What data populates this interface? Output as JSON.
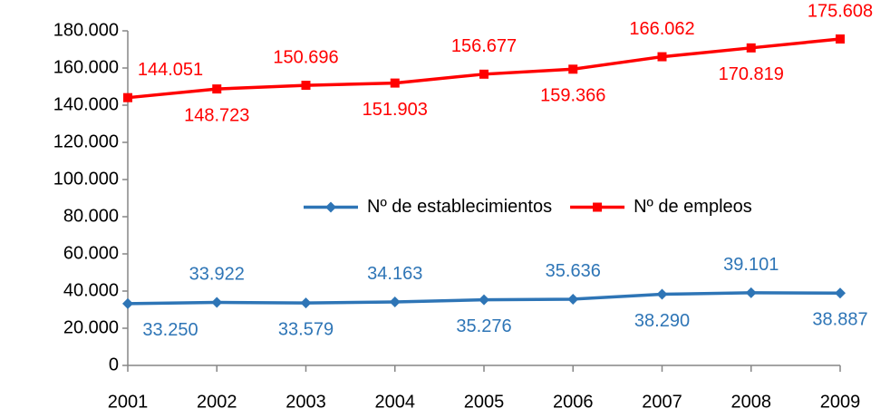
{
  "chart_data": {
    "type": "line",
    "categories": [
      "2001",
      "2002",
      "2003",
      "2004",
      "2005",
      "2006",
      "2007",
      "2008",
      "2009"
    ],
    "series": [
      {
        "name": "Nº de establecimientos",
        "color": "#2e75b6",
        "marker": "diamond",
        "values": [
          33250,
          33922,
          33579,
          34163,
          35276,
          35636,
          38290,
          39101,
          38887
        ],
        "value_labels": [
          "33.250",
          "33.922",
          "33.579",
          "34.163",
          "35.276",
          "35.636",
          "38.290",
          "39.101",
          "38.887"
        ]
      },
      {
        "name": "Nº de empleos",
        "color": "#ff0000",
        "marker": "square",
        "values": [
          144051,
          148723,
          150696,
          151903,
          156677,
          159366,
          166062,
          170819,
          175608
        ],
        "value_labels": [
          "144.051",
          "148.723",
          "150.696",
          "151.903",
          "156.677",
          "159.366",
          "166.062",
          "170.819",
          "175.608"
        ]
      }
    ],
    "ylim": [
      0,
      180000
    ],
    "yticks": [
      0,
      {
        "value": 20000,
        "label": "20.000"
      },
      {
        "value": 40000,
        "label": "40.000"
      },
      {
        "value": 60000,
        "label": "60.000"
      },
      {
        "value": 80000,
        "label": "80.000"
      },
      {
        "value": 100000,
        "label": "100.000"
      },
      {
        "value": 120000,
        "label": "120.000"
      },
      {
        "value": 140000,
        "label": "140.000"
      },
      {
        "value": 160000,
        "label": "160.000"
      },
      {
        "value": 180000,
        "label": "180.000"
      }
    ],
    "grid": false,
    "legend": "center"
  }
}
